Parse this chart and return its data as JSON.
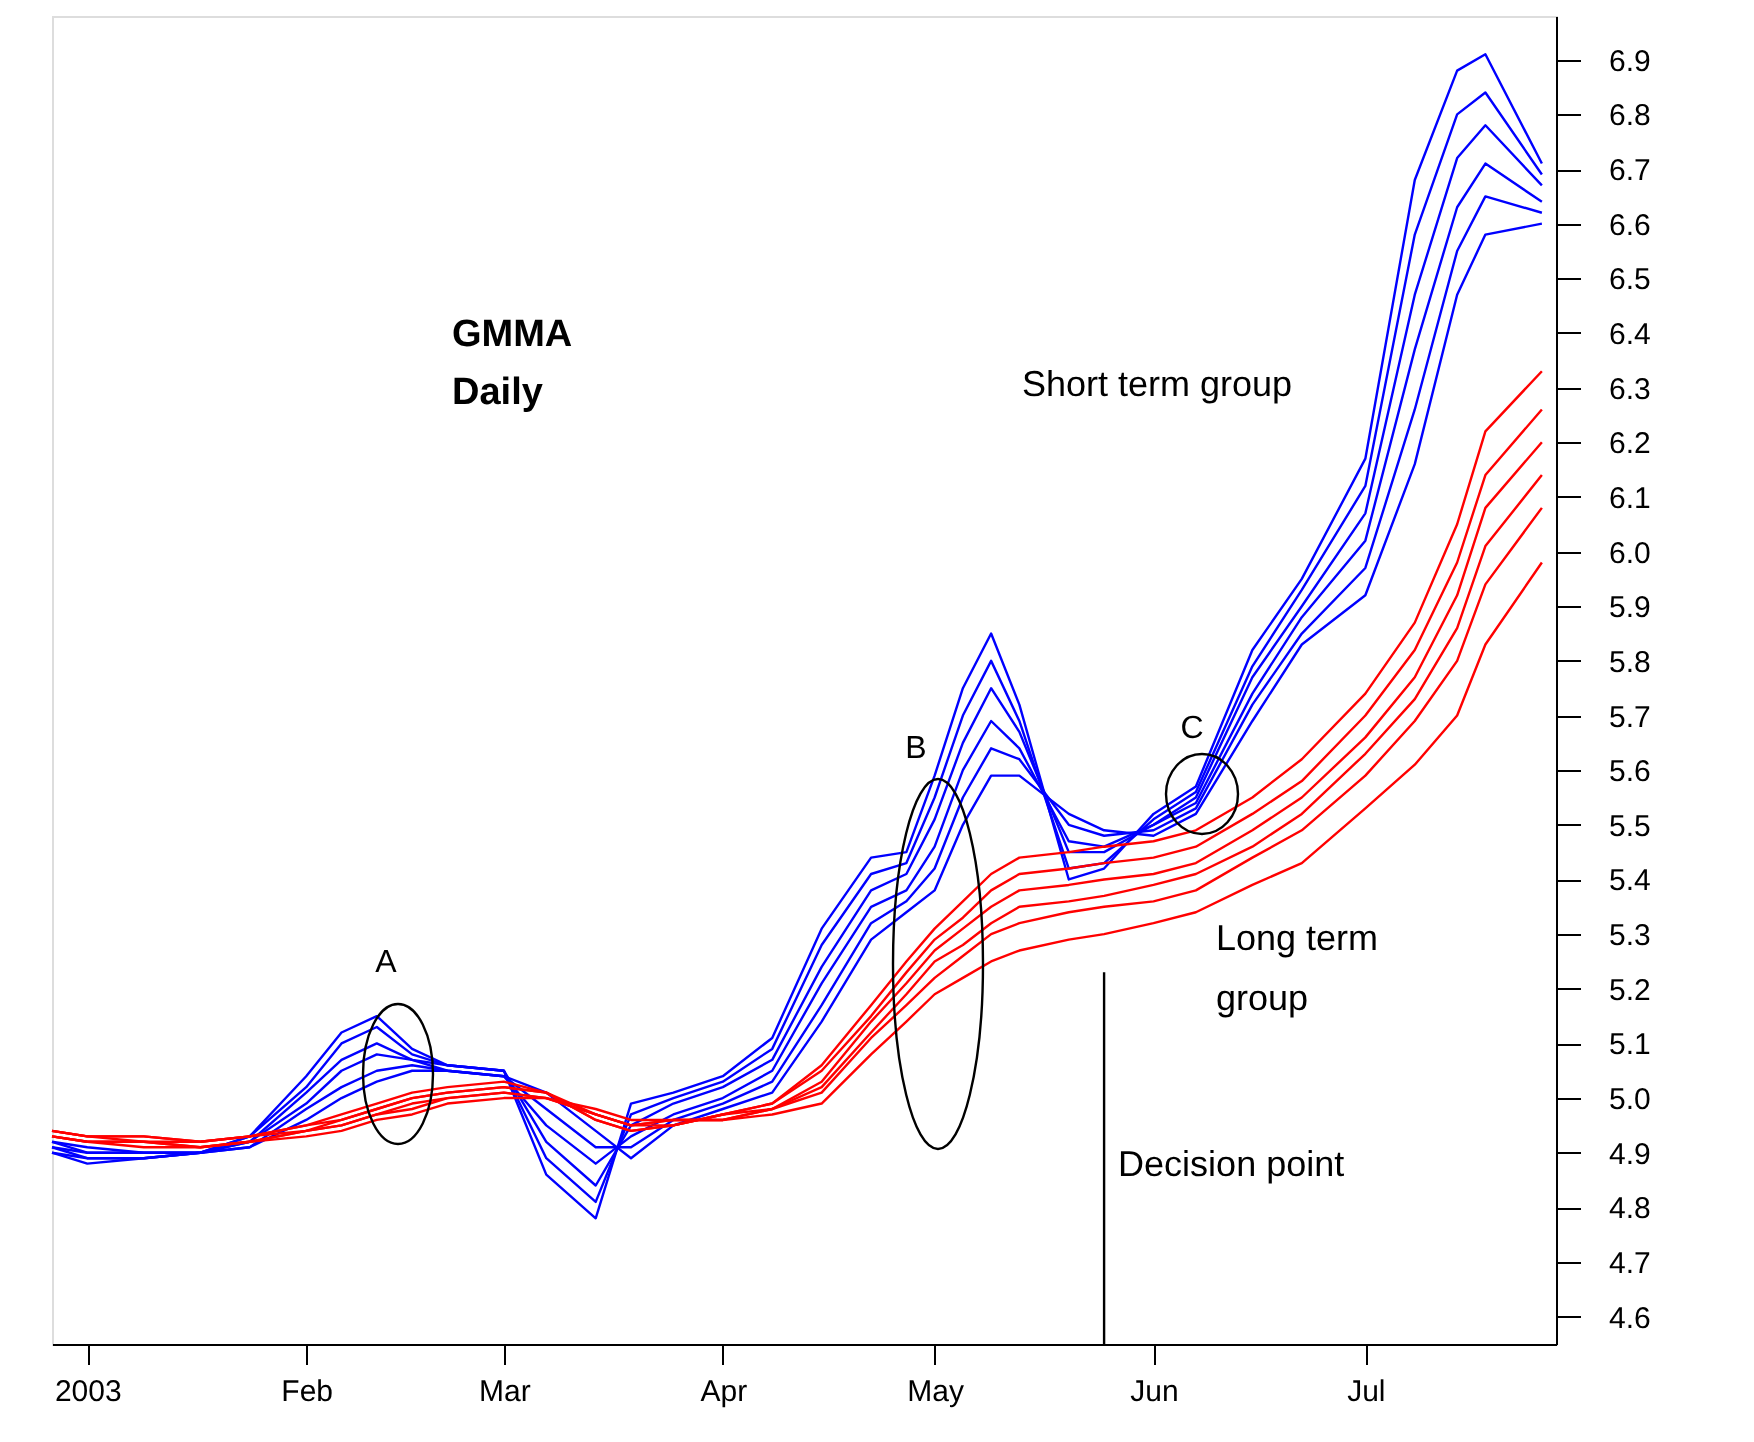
{
  "chart_data": {
    "type": "line",
    "title": "GMMA Daily",
    "x": [
      "2002-12-27",
      "2003-01-01",
      "2003-01-09",
      "2003-01-17",
      "2003-01-24",
      "2003-02-01",
      "2003-02-06",
      "2003-02-11",
      "2003-02-16",
      "2003-02-21",
      "2003-03-01",
      "2003-03-07",
      "2003-03-14",
      "2003-03-19",
      "2003-03-25",
      "2003-04-01",
      "2003-04-08",
      "2003-04-15",
      "2003-04-22",
      "2003-04-27",
      "2003-05-01",
      "2003-05-05",
      "2003-05-09",
      "2003-05-13",
      "2003-05-20",
      "2003-05-25",
      "2003-06-01",
      "2003-06-07",
      "2003-06-15",
      "2003-06-22",
      "2003-07-01",
      "2003-07-08",
      "2003-07-14",
      "2003-07-18",
      "2003-07-26"
    ],
    "series": [
      {
        "color": "#0000ff",
        "values": [
          4.9,
          4.88,
          4.89,
          4.9,
          4.93,
          5.04,
          5.12,
          5.15,
          5.09,
          5.06,
          5.05,
          4.86,
          4.78,
          4.99,
          5.01,
          5.04,
          5.11,
          5.31,
          5.44,
          5.45,
          5.59,
          5.75,
          5.85,
          5.72,
          5.4,
          5.42,
          5.52,
          5.57,
          5.82,
          5.95,
          6.17,
          6.68,
          6.88,
          6.91,
          6.71
        ]
      },
      {
        "color": "#0000ff",
        "values": [
          4.9,
          4.89,
          4.89,
          4.9,
          4.93,
          5.02,
          5.1,
          5.13,
          5.08,
          5.06,
          5.05,
          4.89,
          4.81,
          4.97,
          5.0,
          5.03,
          5.09,
          5.28,
          5.41,
          5.43,
          5.55,
          5.7,
          5.8,
          5.69,
          5.42,
          5.43,
          5.51,
          5.56,
          5.79,
          5.93,
          6.12,
          6.58,
          6.8,
          6.84,
          6.69
        ]
      },
      {
        "color": "#0000ff",
        "values": [
          4.91,
          4.89,
          4.89,
          4.9,
          4.92,
          5.01,
          5.07,
          5.1,
          5.07,
          5.06,
          5.05,
          4.92,
          4.84,
          4.95,
          4.99,
          5.02,
          5.07,
          5.24,
          5.38,
          5.41,
          5.51,
          5.65,
          5.75,
          5.67,
          5.45,
          5.45,
          5.5,
          5.55,
          5.77,
          5.9,
          6.07,
          6.47,
          6.72,
          6.78,
          6.67
        ]
      },
      {
        "color": "#0000ff",
        "values": [
          4.91,
          4.9,
          4.9,
          4.9,
          4.92,
          4.99,
          5.05,
          5.08,
          5.07,
          5.05,
          5.04,
          4.95,
          4.88,
          4.93,
          4.97,
          5.0,
          5.05,
          5.21,
          5.35,
          5.38,
          5.46,
          5.6,
          5.69,
          5.64,
          5.47,
          5.46,
          5.5,
          5.54,
          5.74,
          5.88,
          6.02,
          6.37,
          6.63,
          6.71,
          6.64
        ]
      },
      {
        "color": "#0000ff",
        "values": [
          4.92,
          4.9,
          4.9,
          4.9,
          4.91,
          4.98,
          5.02,
          5.05,
          5.06,
          5.05,
          5.04,
          4.98,
          4.91,
          4.91,
          4.96,
          4.99,
          5.03,
          5.17,
          5.32,
          5.36,
          5.42,
          5.55,
          5.64,
          5.62,
          5.5,
          5.48,
          5.49,
          5.53,
          5.72,
          5.85,
          5.97,
          6.26,
          6.55,
          6.65,
          6.62
        ]
      },
      {
        "color": "#0000ff",
        "values": [
          4.92,
          4.91,
          4.9,
          4.9,
          4.91,
          4.96,
          5.0,
          5.03,
          5.05,
          5.05,
          5.04,
          5.01,
          4.94,
          4.89,
          4.95,
          4.98,
          5.01,
          5.14,
          5.29,
          5.34,
          5.38,
          5.5,
          5.59,
          5.59,
          5.52,
          5.49,
          5.48,
          5.52,
          5.69,
          5.83,
          5.92,
          6.16,
          6.47,
          6.58,
          6.6
        ]
      },
      {
        "color": "#ff0000",
        "values": [
          4.94,
          4.93,
          4.93,
          4.92,
          4.93,
          4.95,
          4.97,
          4.99,
          5.01,
          5.02,
          5.03,
          5.01,
          4.96,
          4.94,
          4.95,
          4.97,
          4.99,
          5.06,
          5.17,
          5.25,
          5.31,
          5.36,
          5.41,
          5.44,
          5.45,
          5.46,
          5.47,
          5.49,
          5.55,
          5.62,
          5.74,
          5.87,
          6.05,
          6.22,
          6.33
        ]
      },
      {
        "color": "#ff0000",
        "values": [
          4.94,
          4.93,
          4.93,
          4.92,
          4.93,
          4.95,
          4.96,
          4.98,
          5.0,
          5.01,
          5.02,
          5.01,
          4.96,
          4.94,
          4.95,
          4.97,
          4.99,
          5.05,
          5.15,
          5.23,
          5.29,
          5.33,
          5.38,
          5.41,
          5.42,
          5.43,
          5.44,
          5.46,
          5.52,
          5.58,
          5.7,
          5.82,
          5.98,
          6.14,
          6.26
        ]
      },
      {
        "color": "#ff0000",
        "values": [
          4.94,
          4.93,
          4.92,
          4.92,
          4.93,
          4.94,
          4.96,
          4.98,
          5.0,
          5.01,
          5.02,
          5.01,
          4.97,
          4.95,
          4.95,
          4.97,
          4.98,
          5.03,
          5.14,
          5.21,
          5.27,
          5.31,
          5.35,
          5.38,
          5.39,
          5.4,
          5.41,
          5.43,
          5.49,
          5.55,
          5.66,
          5.77,
          5.92,
          6.08,
          6.2
        ]
      },
      {
        "color": "#ff0000",
        "values": [
          4.93,
          4.92,
          4.92,
          4.91,
          4.92,
          4.94,
          4.95,
          4.97,
          4.99,
          5.0,
          5.01,
          5.0,
          4.97,
          4.95,
          4.96,
          4.96,
          4.98,
          5.02,
          5.12,
          5.19,
          5.25,
          5.28,
          5.32,
          5.35,
          5.36,
          5.37,
          5.39,
          5.41,
          5.46,
          5.52,
          5.63,
          5.73,
          5.86,
          6.01,
          6.14
        ]
      },
      {
        "color": "#ff0000",
        "values": [
          4.93,
          4.92,
          4.92,
          4.91,
          4.92,
          4.94,
          4.95,
          4.97,
          4.98,
          5.0,
          5.01,
          5.0,
          4.97,
          4.95,
          4.96,
          4.96,
          4.98,
          5.01,
          5.11,
          5.17,
          5.22,
          5.26,
          5.3,
          5.32,
          5.34,
          5.35,
          5.36,
          5.38,
          5.44,
          5.49,
          5.59,
          5.69,
          5.8,
          5.94,
          6.08
        ]
      },
      {
        "color": "#ff0000",
        "values": [
          4.93,
          4.92,
          4.91,
          4.91,
          4.92,
          4.93,
          4.94,
          4.96,
          4.97,
          4.99,
          5.0,
          5.0,
          4.98,
          4.96,
          4.96,
          4.96,
          4.97,
          4.99,
          5.08,
          5.14,
          5.19,
          5.22,
          5.25,
          5.27,
          5.29,
          5.3,
          5.32,
          5.34,
          5.39,
          5.43,
          5.53,
          5.61,
          5.7,
          5.83,
          5.98
        ]
      }
    ],
    "xlim": [
      "2002-12-27",
      "2003-07-28"
    ],
    "xticks": [
      {
        "value": "2003-01-01",
        "label": "2003"
      },
      {
        "value": "2003-02-01",
        "label": "Feb"
      },
      {
        "value": "2003-03-01",
        "label": "Mar"
      },
      {
        "value": "2003-04-01",
        "label": "Apr"
      },
      {
        "value": "2003-05-01",
        "label": "May"
      },
      {
        "value": "2003-06-01",
        "label": "Jun"
      },
      {
        "value": "2003-07-01",
        "label": "Jul"
      }
    ],
    "ylim": [
      4.55,
      6.98
    ],
    "yticks": [
      4.6,
      4.7,
      4.8,
      4.9,
      {
        "value": 5.0,
        "label": "5.0"
      },
      5.1,
      5.2,
      5.3,
      5.4,
      5.5,
      5.6,
      5.7,
      5.8,
      5.9,
      {
        "value": 6.0,
        "label": "6.0"
      },
      6.1,
      6.2,
      6.3,
      6.4,
      6.5,
      6.6,
      6.7,
      6.8,
      6.9
    ],
    "ref_lines": [
      {
        "axis": "x",
        "value": "2003-05-25",
        "label": "Decision point",
        "color": "#000000"
      }
    ],
    "annotations": [
      "A",
      "B",
      "C",
      "Short term group",
      "Long term\ngroup"
    ],
    "grid": false,
    "legend": false
  }
}
